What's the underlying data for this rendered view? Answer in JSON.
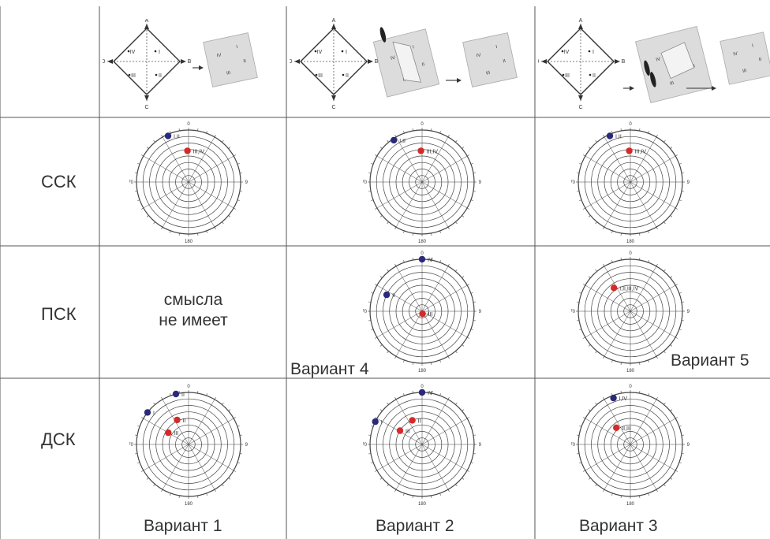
{
  "rows": [
    {
      "label": "ССК"
    },
    {
      "label": "ПСК"
    },
    {
      "label": "ДСК"
    }
  ],
  "psk_empty_text": {
    "line1": "смысла",
    "line2": "не имеет"
  },
  "variants": {
    "v1": "Вариант 1",
    "v2": "Вариант 2",
    "v3": "Вариант 3",
    "v4": "Вариант 4",
    "v5": "Вариант 5"
  },
  "polar_ticks": {
    "top": "0",
    "right": "90",
    "bottom": "180",
    "left": "270"
  },
  "sketch_labels": {
    "a": "A",
    "b": "B",
    "c": "C",
    "d": "D",
    "q1": "I",
    "q2": "II",
    "q3": "III",
    "q4": "IV"
  },
  "colors": {
    "blue_point": "#2a2a7a",
    "red_point": "#d42a2a",
    "grid_line": "#444444",
    "panel_fill": "#dcdcdc"
  },
  "chart_data": [
    {
      "type": "scatter",
      "panel": "ССК-col1",
      "axis": "azimuth",
      "points": [
        {
          "azimuth": 336,
          "radius": 0.97,
          "color": "blue",
          "label": "I,II"
        },
        {
          "azimuth": 358,
          "radius": 0.6,
          "color": "red",
          "label": "III,IV"
        }
      ]
    },
    {
      "type": "scatter",
      "panel": "ССК-col2",
      "axis": "azimuth",
      "points": [
        {
          "azimuth": 326,
          "radius": 0.97,
          "color": "blue",
          "label": "I,II"
        },
        {
          "azimuth": 358,
          "radius": 0.6,
          "color": "red",
          "label": "III,IV"
        }
      ]
    },
    {
      "type": "scatter",
      "panel": "ССК-col3",
      "axis": "azimuth",
      "points": [
        {
          "azimuth": 336,
          "radius": 0.97,
          "color": "blue",
          "label": "I,II"
        },
        {
          "azimuth": 358,
          "radius": 0.6,
          "color": "red",
          "label": "III,IV"
        }
      ]
    },
    {
      "type": "scatter",
      "panel": "ПСК-col2",
      "axis": "azimuth",
      "points": [
        {
          "azimuth": 0,
          "radius": 1.0,
          "color": "blue",
          "label": "IV"
        },
        {
          "azimuth": 295,
          "radius": 0.75,
          "color": "blue",
          "label": "II"
        },
        {
          "azimuth": 170,
          "radius": 0.05,
          "color": "red",
          "label": "III"
        }
      ]
    },
    {
      "type": "scatter",
      "panel": "ПСК-col3",
      "axis": "azimuth",
      "points": [
        {
          "azimuth": 325,
          "radius": 0.55,
          "color": "red",
          "label": "I,II,III,IV"
        }
      ]
    },
    {
      "type": "scatter",
      "panel": "ДСК-col1",
      "axis": "azimuth",
      "points": [
        {
          "azimuth": 346,
          "radius": 1.0,
          "color": "blue",
          "label": "II"
        },
        {
          "azimuth": 308,
          "radius": 1.0,
          "color": "blue",
          "label": "I"
        },
        {
          "azimuth": 335,
          "radius": 0.52,
          "color": "red",
          "label": "II"
        },
        {
          "azimuth": 300,
          "radius": 0.45,
          "color": "red",
          "label": "III"
        }
      ]
    },
    {
      "type": "scatter",
      "panel": "ДСК-col2",
      "axis": "azimuth",
      "points": [
        {
          "azimuth": 0,
          "radius": 1.0,
          "color": "blue",
          "label": "IV"
        },
        {
          "azimuth": 296,
          "radius": 1.0,
          "color": "blue",
          "label": "I"
        },
        {
          "azimuth": 338,
          "radius": 0.5,
          "color": "red",
          "label": "II"
        },
        {
          "azimuth": 302,
          "radius": 0.5,
          "color": "red",
          "label": "III"
        }
      ]
    },
    {
      "type": "scatter",
      "panel": "ДСК-col3",
      "axis": "azimuth",
      "points": [
        {
          "azimuth": 340,
          "radius": 0.95,
          "color": "blue",
          "label": "I,IV"
        },
        {
          "azimuth": 320,
          "radius": 0.42,
          "color": "red",
          "label": "II,III"
        }
      ]
    }
  ]
}
